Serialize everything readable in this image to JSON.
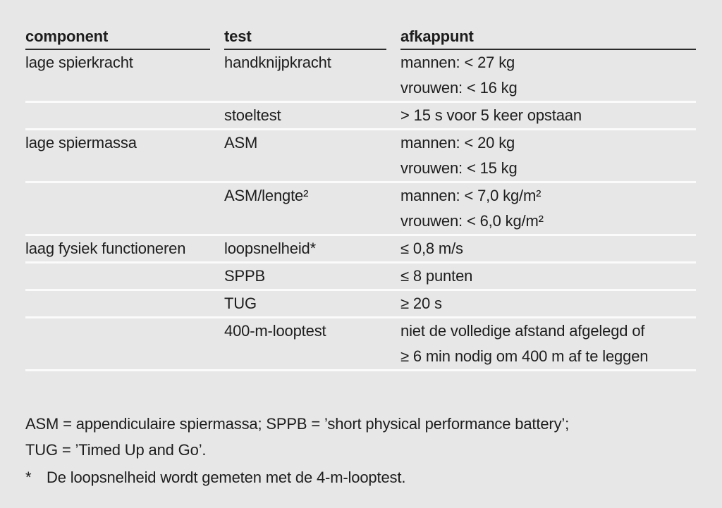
{
  "colors": {
    "background": "#e7e7e7",
    "text": "#1d1d1d",
    "header_rule": "#2b2b2b",
    "row_rule": "#fbfbfb"
  },
  "chart_data": {
    "type": "table",
    "columns": [
      {
        "label": "component"
      },
      {
        "label": "test"
      },
      {
        "label": "afkappunt"
      }
    ],
    "rows": [
      {
        "component": "lage spierkracht",
        "test": "handknijpkracht",
        "cutoff": [
          "mannen: < 27 kg",
          "vrouwen: < 16 kg"
        ]
      },
      {
        "component": "",
        "test": "stoeltest",
        "cutoff": [
          "> 15 s voor 5 keer opstaan"
        ]
      },
      {
        "component": "lage spiermassa",
        "test": "ASM",
        "cutoff": [
          "mannen: < 20 kg",
          "vrouwen: < 15 kg"
        ]
      },
      {
        "component": "",
        "test": "ASM/lengte²",
        "cutoff": [
          "mannen: < 7,0 kg/m²",
          "vrouwen: < 6,0 kg/m²"
        ]
      },
      {
        "component": "laag fysiek functioneren",
        "test": "loopsnelheid*",
        "cutoff": [
          "≤ 0,8 m/s"
        ]
      },
      {
        "component": "",
        "test": "SPPB",
        "cutoff": [
          "≤ 8 punten"
        ]
      },
      {
        "component": "",
        "test": "TUG",
        "cutoff": [
          "≥ 20 s"
        ]
      },
      {
        "component": "",
        "test": "400-m-looptest",
        "cutoff": [
          "niet de volledige afstand afgelegd of",
          "≥ 6 min nodig om 400 m af te leggen"
        ]
      }
    ]
  },
  "footnotes": {
    "abbrev_line1": "ASM = appendiculaire spiermassa; SPPB = ’short physical performance battery’;",
    "abbrev_line2": "TUG = ’Timed Up and Go’.",
    "star_symbol": "*",
    "star_text": "De loopsnelheid wordt gemeten met de 4-m-looptest."
  }
}
